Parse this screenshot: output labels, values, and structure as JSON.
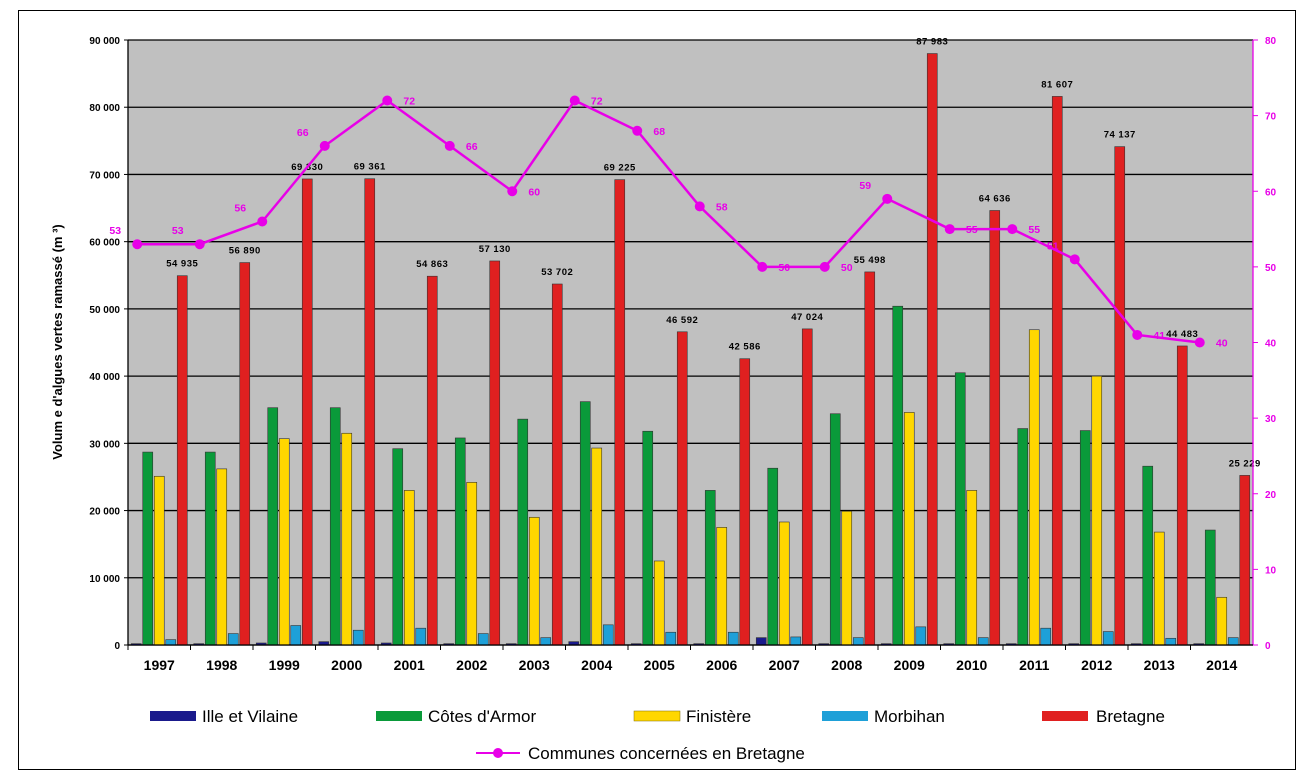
{
  "chart_data": {
    "type": "bar",
    "title": "",
    "ylabel": "Volum e d'algues vertes ramassé (m ³)",
    "ylim": [
      0,
      90000
    ],
    "y_ticks": [
      "0",
      "10 000",
      "20 000",
      "30 000",
      "40 000",
      "50 000",
      "60 000",
      "70 000",
      "80 000",
      "90 000"
    ],
    "y2lim": [
      0,
      80
    ],
    "y2_ticks": [
      "0",
      "10",
      "20",
      "30",
      "40",
      "50",
      "60",
      "70",
      "80"
    ],
    "grid": true,
    "legend_position": "bottom",
    "categories": [
      "1997",
      "1998",
      "1999",
      "2000",
      "2001",
      "2002",
      "2003",
      "2004",
      "2005",
      "2006",
      "2007",
      "2008",
      "2009",
      "2010",
      "2011",
      "2012",
      "2013",
      "2014"
    ],
    "series": [
      {
        "name": "Ille et Vilaine",
        "color": "#1a1a8c",
        "values": [
          200,
          200,
          300,
          500,
          300,
          200,
          200,
          500,
          200,
          200,
          1100,
          200,
          200,
          200,
          200,
          200,
          200,
          200
        ]
      },
      {
        "name": "Côtes d'Armor",
        "color": "#0a9a3a",
        "values": [
          28700,
          28700,
          35300,
          35300,
          29200,
          30800,
          33600,
          36200,
          31800,
          23000,
          26300,
          34400,
          50400,
          40500,
          32200,
          31900,
          26600,
          17100
        ]
      },
      {
        "name": "Finistère",
        "color": "#ffd700",
        "values": [
          25100,
          26200,
          30700,
          31500,
          23000,
          24200,
          19000,
          29300,
          12500,
          17500,
          18300,
          19900,
          34600,
          23000,
          46900,
          40000,
          16800,
          7100
        ]
      },
      {
        "name": "Morbihan",
        "color": "#1ea0d8",
        "values": [
          800,
          1700,
          2900,
          2200,
          2500,
          1700,
          1100,
          3000,
          1900,
          1900,
          1200,
          1100,
          2700,
          1100,
          2500,
          2000,
          1000,
          1100
        ]
      },
      {
        "name": "Bretagne",
        "color": "#e02020",
        "values": [
          54935,
          56890,
          69330,
          69361,
          54863,
          57130,
          53702,
          69225,
          46592,
          42586,
          47024,
          55498,
          87983,
          64636,
          81607,
          74137,
          44483,
          25229
        ],
        "labels": [
          "54 935",
          "56 890",
          "69 330",
          "69 361",
          "54 863",
          "57 130",
          "53 702",
          "69 225",
          "46 592",
          "42 586",
          "47 024",
          "55 498",
          "87 983",
          "64 636",
          "81 607",
          "74 137",
          "44 483",
          "25 229"
        ]
      }
    ],
    "line_series": {
      "name": "Communes concernées en Bretagne",
      "color": "#e800e8",
      "axis": "right",
      "values": [
        53,
        53,
        56,
        66,
        72,
        66,
        60,
        72,
        68,
        58,
        50,
        50,
        59,
        55,
        55,
        51,
        41,
        40
      ],
      "labels": [
        "53",
        "53",
        "56",
        "66",
        "72",
        "66",
        "60",
        "72",
        "68",
        "58",
        "50",
        "50",
        "59",
        "55",
        "55",
        "51",
        "41",
        "40"
      ]
    }
  },
  "legend": {
    "items": [
      "Ille et Vilaine",
      "Côtes d'Armor",
      "Finistère",
      "Morbihan",
      "Bretagne"
    ],
    "line_item": "Communes concernées en Bretagne"
  }
}
